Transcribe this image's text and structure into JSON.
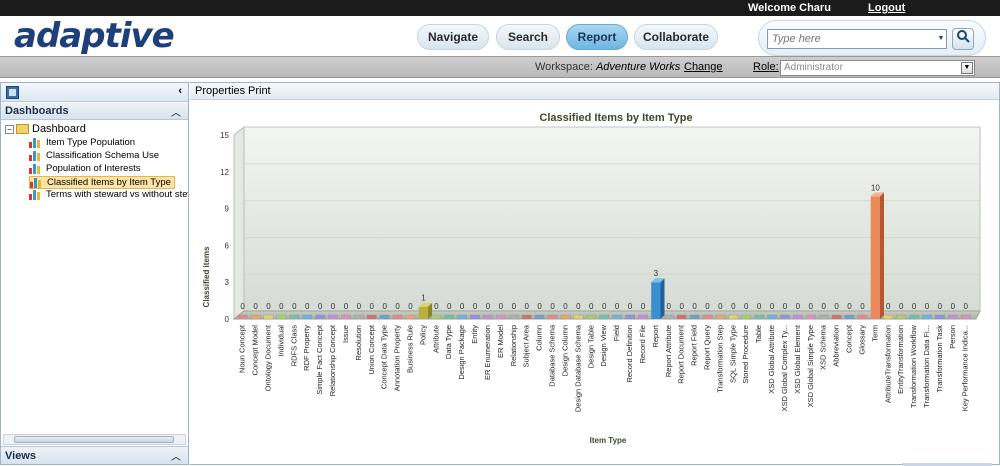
{
  "user": {
    "welcome": "Welcome Charu",
    "logout": "Logout"
  },
  "brand": {
    "logo": "adaptive"
  },
  "nav": [
    {
      "label": "Navigate"
    },
    {
      "label": "Search"
    },
    {
      "label": "Report"
    },
    {
      "label": "Collaborate"
    }
  ],
  "search": {
    "placeholder": "Type here",
    "go_icon": "magnifier-icon"
  },
  "workspace": {
    "label": "Workspace:",
    "name": "Adventure Works",
    "change": "Change"
  },
  "role": {
    "label": "Role:",
    "value": "Administrator"
  },
  "left": {
    "dashboards_title": "Dashboards",
    "root": "Dashboard",
    "items": [
      {
        "label": "Item Type Population"
      },
      {
        "label": "Classification Schema Use"
      },
      {
        "label": "Population of Interests"
      },
      {
        "label": "Classified Items by Item Type"
      },
      {
        "label": "Terms with steward vs without steward"
      }
    ],
    "views_title": "Views"
  },
  "toolbar": {
    "properties": "Properties",
    "print": "Print"
  },
  "colors": {
    "accent": "#1d3f7b",
    "selected": "#fbe4a6",
    "chart_bg": "#dfe5e0"
  },
  "chart_data": {
    "type": "bar",
    "title": "Classified Items by Item Type",
    "xlabel": "Item Type",
    "ylabel": "Classified items",
    "ylim": [
      0,
      15
    ],
    "yticks": [
      0,
      3,
      6,
      9,
      12,
      15
    ],
    "categories": [
      "Noun Concept",
      "Concept Model",
      "Ontology Document",
      "Individual",
      "RDFS Class",
      "RDF Property",
      "Simple Fact Concept",
      "Relationship Concept",
      "Issue",
      "Resolution",
      "Union Concept",
      "Concept Data Type",
      "Annotation Property",
      "Business Rule",
      "Policy",
      "Attribute",
      "Data Type",
      "Design Package",
      "Entity",
      "ER Enumeration",
      "ER Model",
      "Relationship",
      "Subject Area",
      "Column",
      "Database Schema",
      "Design Column",
      "Design Database Schema",
      "Design Table",
      "Design View",
      "Field",
      "Record Definition",
      "Record File",
      "Report",
      "Report Attribute",
      "Report Document",
      "Report Field",
      "Report Query",
      "Transformation Step",
      "SQL Simple Type",
      "Stored Procedure",
      "Table",
      "XSD Global Attribute",
      "XSD Global Complex Ty...",
      "XSD Global Element",
      "XSD Global Simple Type",
      "XSD Schema",
      "Abbreviation",
      "Concept",
      "Glossary",
      "Term",
      "AttributeTransformation",
      "EntityTransformation",
      "Transformation Workflow",
      "Transformation Data Fi...",
      "Transformation Task",
      "Person",
      "Key Performance Indica..."
    ],
    "values": [
      0,
      0,
      0,
      0,
      0,
      0,
      0,
      0,
      0,
      0,
      0,
      0,
      0,
      0,
      1,
      0,
      0,
      0,
      0,
      0,
      0,
      0,
      0,
      0,
      0,
      0,
      0,
      0,
      0,
      0,
      0,
      0,
      3,
      0,
      0,
      0,
      0,
      0,
      0,
      0,
      0,
      0,
      0,
      0,
      0,
      0,
      0,
      0,
      0,
      10,
      0,
      0,
      0,
      0,
      0,
      0,
      0
    ]
  }
}
